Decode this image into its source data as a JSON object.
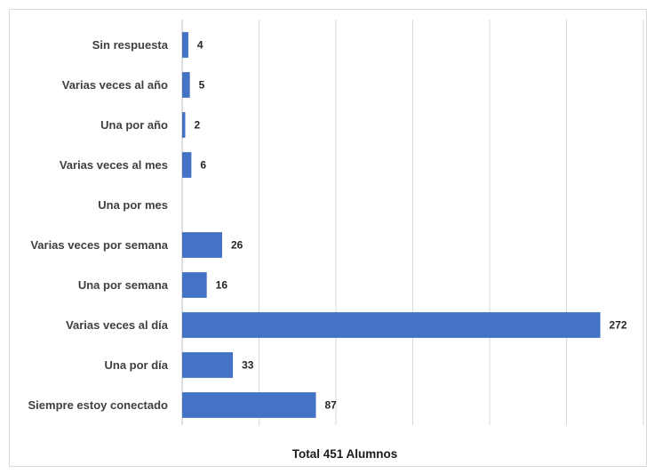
{
  "chart_data": {
    "type": "bar",
    "orientation": "horizontal",
    "categories": [
      "Sin respuesta",
      "Varias veces al año",
      "Una por año",
      "Varias veces al mes",
      "Una por mes",
      "Varias veces por semana",
      "Una por semana",
      "Varias veces al día",
      "Una por día",
      "Siempre estoy conectado"
    ],
    "values": [
      4,
      5,
      2,
      6,
      null,
      26,
      16,
      272,
      33,
      87
    ],
    "title": "",
    "xlabel": "Total 451 Alumnos",
    "ylabel": "",
    "xlim": [
      0,
      300
    ],
    "grid": true,
    "legend": "none",
    "bar_color": "#4472c4"
  }
}
